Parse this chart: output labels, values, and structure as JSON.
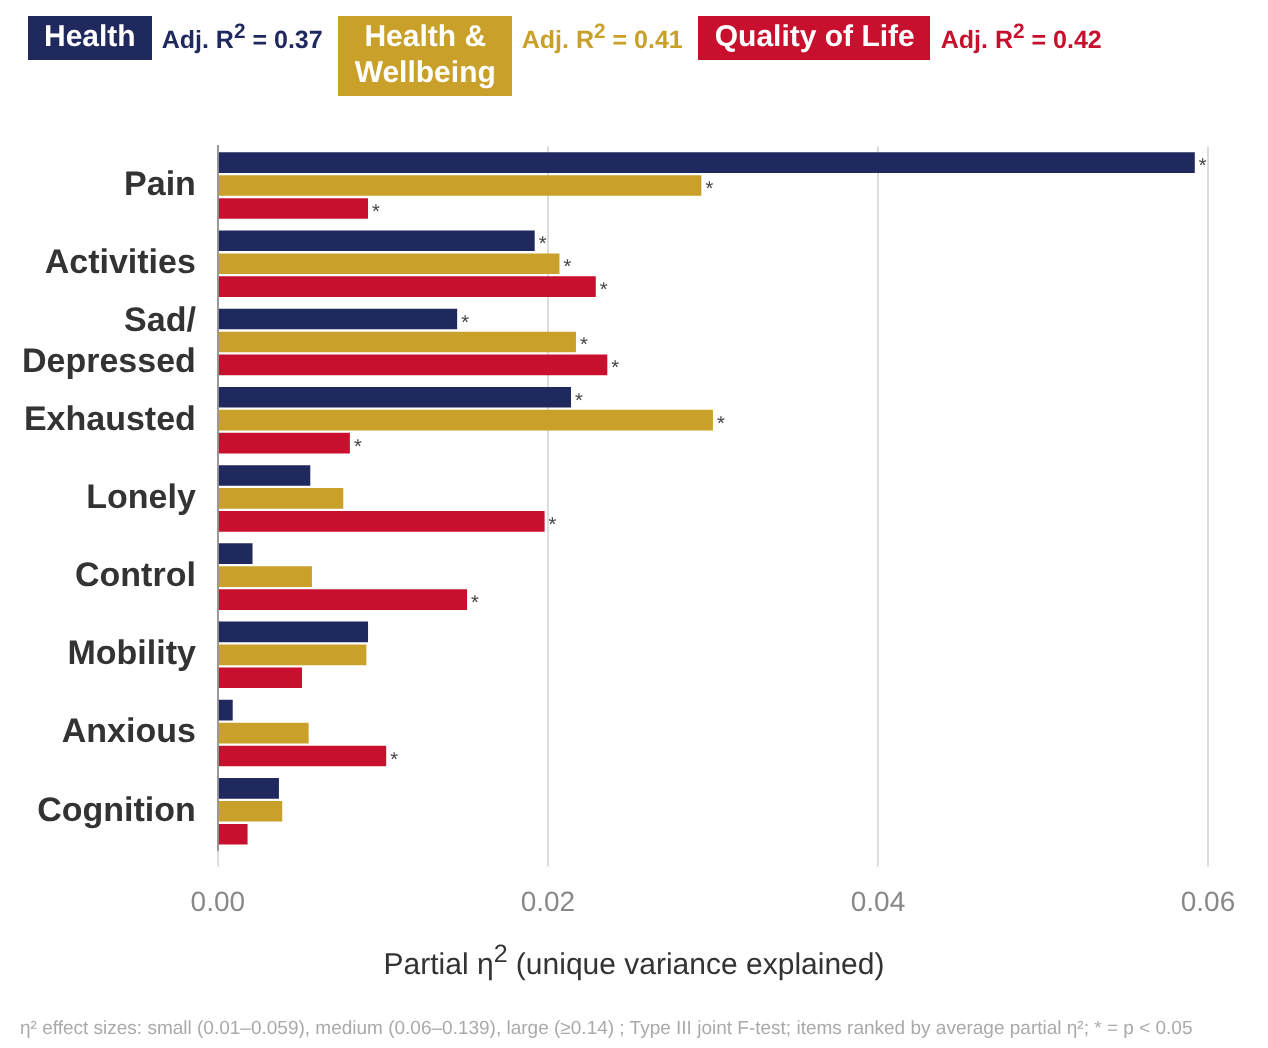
{
  "chart_data": {
    "type": "bar",
    "orientation": "horizontal",
    "categories": [
      "Pain",
      "Activities",
      "Sad/ Depressed",
      "Exhausted",
      "Lonely",
      "Control",
      "Mobility",
      "Anxious",
      "Cognition"
    ],
    "series": [
      {
        "name": "Health",
        "color": "#20295e",
        "values": [
          0.0592,
          0.0192,
          0.0145,
          0.0214,
          0.0056,
          0.0021,
          0.0091,
          0.0009,
          0.0037
        ],
        "value_labels": [
          "*",
          "*",
          "*",
          "*",
          null,
          null,
          null,
          null,
          null
        ]
      },
      {
        "name": "Health & Wellbeing",
        "color": "#c9a02a",
        "values": [
          0.0293,
          0.0207,
          0.0217,
          0.03,
          0.0076,
          0.0057,
          0.009,
          0.0055,
          0.0039
        ],
        "value_labels": [
          "*",
          "*",
          "*",
          "*",
          null,
          null,
          null,
          null,
          null
        ]
      },
      {
        "name": "Quality of Life",
        "color": "#c8102e",
        "values": [
          0.0091,
          0.0229,
          0.0236,
          0.008,
          0.0198,
          0.0151,
          0.0051,
          0.0102,
          0.0018
        ],
        "value_labels": [
          "*",
          "*",
          "*",
          "*",
          "*",
          "*",
          null,
          "*",
          null
        ]
      }
    ],
    "xlabel": "Partial η$^{2}$ (unique variance explained)",
    "xlim": [
      0,
      0.06
    ],
    "xticks": [
      {
        "value": 0,
        "label": "0.00"
      },
      {
        "value": 0.02,
        "label": "0.02"
      },
      {
        "value": 0.04,
        "label": "0.04"
      },
      {
        "value": 0.06,
        "label": "0.06"
      }
    ],
    "grid": "x",
    "legend": "top",
    "annotations": [
      "Adj. R$^{2}$ = 0.37",
      "Adj. R$^{2}$ = 0.41",
      "Adj. R$^{2}$ = 0.42",
      "η² effect sizes: small (0.01–0.059), medium (0.06–0.139), large (≥0.14) ; Type III joint F-test; items ranked by average partial η²; * = p < 0.05"
    ]
  }
}
